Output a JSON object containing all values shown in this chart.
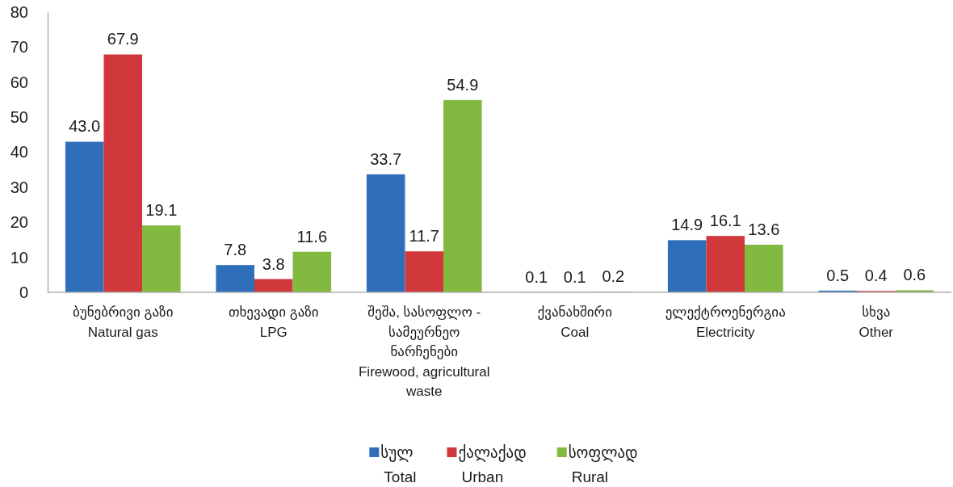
{
  "chart_data": {
    "type": "bar",
    "categories": [
      "ბუნებრივი გაზი\nNatural gas",
      "თხევადი გაზი\nLPG",
      "შეშა, სასოფლო -\nსამეურნეო\nნარჩენები\nFirewood, agricultural\nwaste",
      "ქვანახშირი\nCoal",
      "ელექტროენერგია\nElectricity",
      "სხვა\nOther"
    ],
    "series": [
      {
        "name": "სულ\nTotal",
        "color": "#2f6fba",
        "values": [
          43.0,
          7.8,
          33.7,
          0.1,
          14.9,
          0.5
        ],
        "value_labels": [
          "43.0",
          "7.8",
          "33.7",
          "0.1",
          "14.9",
          "0.5"
        ]
      },
      {
        "name": "ქალაქად\nUrban",
        "color": "#d0383c",
        "values": [
          67.9,
          3.8,
          11.7,
          0.1,
          16.1,
          0.4
        ],
        "value_labels": [
          "67.9",
          "3.8",
          "11.7",
          "0.1",
          "16.1",
          "0.4"
        ]
      },
      {
        "name": "სოფლად\nRural",
        "color": "#82b941",
        "values": [
          19.1,
          11.6,
          54.9,
          0.2,
          13.6,
          0.6
        ],
        "value_labels": [
          "19.1",
          "11.6",
          "54.9",
          "0.2",
          "13.6",
          "0.6"
        ]
      }
    ],
    "ylim": [
      0,
      80
    ],
    "yticks": [
      0,
      10,
      20,
      30,
      40,
      50,
      60,
      70,
      80
    ],
    "legend": "bottom"
  }
}
